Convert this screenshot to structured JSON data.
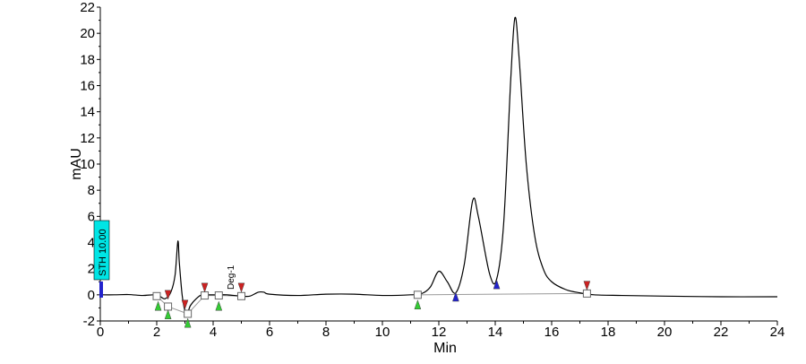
{
  "chart_data": {
    "type": "line",
    "xlabel": "Min",
    "ylabel": "mAU",
    "xlim": [
      0,
      24
    ],
    "ylim": [
      -2,
      22
    ],
    "x_ticks": [
      0,
      2,
      4,
      6,
      8,
      10,
      12,
      14,
      16,
      18,
      20,
      22,
      24
    ],
    "y_ticks": [
      -2,
      0,
      2,
      4,
      6,
      8,
      10,
      12,
      14,
      16,
      18,
      20,
      22
    ],
    "grid": false,
    "colors": {
      "trace": "#000000",
      "baseline": "#999999",
      "red_marker": "#cc2222",
      "green_marker": "#33cc33",
      "blue_marker": "#2222cc",
      "threshold_fill": "#00e5e5"
    },
    "series": [
      {
        "values": [
          [
            0.0,
            0.0
          ],
          [
            0.5,
            0.0
          ],
          [
            1.0,
            0.02
          ],
          [
            1.5,
            -0.05
          ],
          [
            1.9,
            0.0
          ],
          [
            2.1,
            -0.1
          ],
          [
            2.3,
            -0.3
          ],
          [
            2.5,
            0.2
          ],
          [
            2.65,
            1.5
          ],
          [
            2.75,
            4.1
          ],
          [
            2.8,
            2.5
          ],
          [
            2.9,
            0.0
          ],
          [
            3.0,
            -1.2
          ],
          [
            3.1,
            -1.3
          ],
          [
            3.2,
            -0.8
          ],
          [
            3.4,
            -0.3
          ],
          [
            3.6,
            0.0
          ],
          [
            3.9,
            0.0
          ],
          [
            4.2,
            0.0
          ],
          [
            4.5,
            0.0
          ],
          [
            5.0,
            -0.1
          ],
          [
            5.3,
            -0.1
          ],
          [
            5.6,
            0.2
          ],
          [
            5.8,
            0.2
          ],
          [
            6.0,
            0.05
          ],
          [
            7.0,
            -0.05
          ],
          [
            8.0,
            0.05
          ],
          [
            9.0,
            0.05
          ],
          [
            10.0,
            -0.05
          ],
          [
            11.0,
            0.0
          ],
          [
            11.4,
            0.1
          ],
          [
            11.7,
            0.6
          ],
          [
            12.0,
            1.8
          ],
          [
            12.3,
            1.0
          ],
          [
            12.6,
            0.15
          ],
          [
            12.9,
            2.3
          ],
          [
            13.2,
            7.2
          ],
          [
            13.4,
            6.0
          ],
          [
            13.8,
            1.6
          ],
          [
            14.05,
            1.2
          ],
          [
            14.3,
            5.5
          ],
          [
            14.55,
            16.5
          ],
          [
            14.7,
            21.2
          ],
          [
            14.85,
            18.0
          ],
          [
            15.1,
            10.0
          ],
          [
            15.4,
            4.5
          ],
          [
            15.7,
            2.0
          ],
          [
            16.0,
            1.0
          ],
          [
            16.5,
            0.4
          ],
          [
            17.0,
            0.15
          ],
          [
            17.5,
            0.0
          ],
          [
            18.5,
            -0.05
          ],
          [
            20.0,
            -0.1
          ],
          [
            22.0,
            -0.15
          ],
          [
            24.0,
            -0.15
          ]
        ]
      }
    ],
    "baseline_segments": [
      [
        [
          2.0,
          -0.1
        ],
        [
          2.4,
          -0.9
        ],
        [
          3.1,
          -1.45
        ],
        [
          3.7,
          -0.05
        ],
        [
          4.2,
          -0.05
        ],
        [
          5.0,
          -0.1
        ]
      ],
      [
        [
          11.25,
          0.0
        ],
        [
          17.25,
          0.1
        ]
      ]
    ],
    "integration_boxes": [
      [
        2.0,
        -0.1
      ],
      [
        2.4,
        -0.9
      ],
      [
        3.1,
        -1.45
      ],
      [
        3.7,
        -0.05
      ],
      [
        4.2,
        -0.05
      ],
      [
        5.0,
        -0.1
      ],
      [
        11.25,
        0.0
      ],
      [
        17.25,
        0.1
      ]
    ],
    "markers": [
      {
        "x": 2.4,
        "y": 0.0,
        "kind": "red-down"
      },
      {
        "x": 3.0,
        "y": -0.75,
        "kind": "red-down"
      },
      {
        "x": 3.7,
        "y": 0.55,
        "kind": "red-down"
      },
      {
        "x": 5.0,
        "y": 0.55,
        "kind": "red-down"
      },
      {
        "x": 17.25,
        "y": 0.7,
        "kind": "red-down"
      },
      {
        "x": 2.05,
        "y": -0.85,
        "kind": "green-up"
      },
      {
        "x": 2.4,
        "y": -1.5,
        "kind": "green-up"
      },
      {
        "x": 3.1,
        "y": -2.15,
        "kind": "green-up"
      },
      {
        "x": 4.2,
        "y": -0.85,
        "kind": "green-up"
      },
      {
        "x": 11.25,
        "y": -0.75,
        "kind": "green-up"
      },
      {
        "x": 12.6,
        "y": -0.15,
        "kind": "blue-up"
      },
      {
        "x": 14.05,
        "y": 0.8,
        "kind": "blue-up"
      }
    ],
    "annotations": [
      {
        "text": "Deg-1",
        "x": 4.6,
        "y": 0.4
      }
    ],
    "threshold_label": "STH 10.00"
  }
}
